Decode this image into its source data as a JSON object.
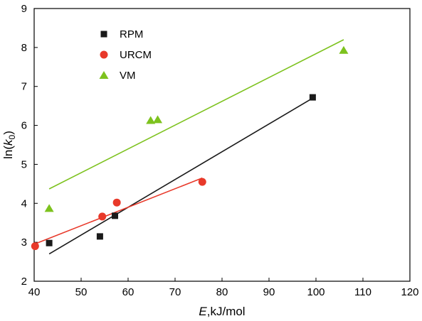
{
  "chart_data": {
    "type": "scatter",
    "xlabel": {
      "italic": "E",
      "rest": ",kJ/mol"
    },
    "ylabel": {
      "prefix": "ln(",
      "italic": "k",
      "sub": "0",
      "suffix": ")"
    },
    "xlim": [
      40,
      120
    ],
    "ylim": [
      2,
      9
    ],
    "xticks": [
      40,
      50,
      60,
      70,
      80,
      90,
      100,
      110,
      120
    ],
    "yticks": [
      2,
      3,
      4,
      5,
      6,
      7,
      8,
      9
    ],
    "grid": false,
    "legend_position": "top-left",
    "series": [
      {
        "name": "RPM",
        "marker": "square",
        "color": "#1a1a1a",
        "points": [
          [
            43.2,
            2.98
          ],
          [
            54.0,
            3.15
          ],
          [
            57.2,
            3.68
          ],
          [
            99.3,
            6.72
          ]
        ],
        "fit": [
          [
            43.2,
            2.7
          ],
          [
            99.3,
            6.7
          ]
        ]
      },
      {
        "name": "URCM",
        "marker": "circle",
        "color": "#e8392a",
        "points": [
          [
            40.2,
            2.9
          ],
          [
            54.5,
            3.66
          ],
          [
            57.6,
            4.02
          ],
          [
            75.8,
            4.55
          ]
        ],
        "fit": [
          [
            40.0,
            2.95
          ],
          [
            75.8,
            4.65
          ]
        ]
      },
      {
        "name": "VM",
        "marker": "triangle",
        "color": "#7dc21e",
        "points": [
          [
            43.2,
            3.87
          ],
          [
            64.8,
            6.13
          ],
          [
            66.3,
            6.15
          ],
          [
            105.9,
            7.93
          ]
        ],
        "fit": [
          [
            43.2,
            4.37
          ],
          [
            105.9,
            8.2
          ]
        ]
      }
    ]
  }
}
